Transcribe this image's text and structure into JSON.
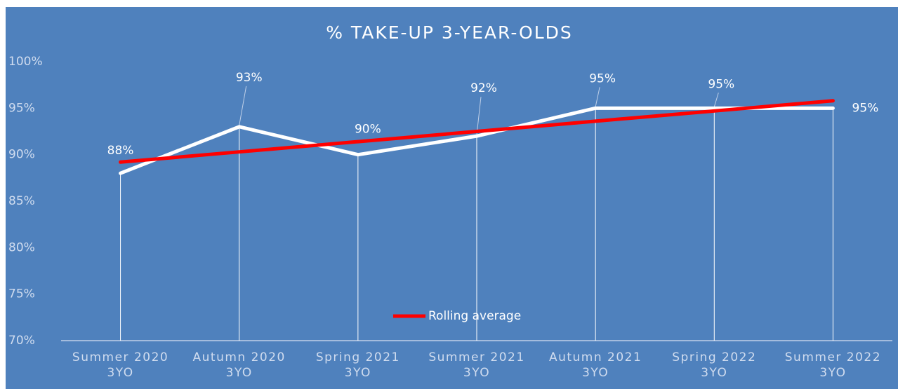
{
  "chart_data": {
    "type": "line",
    "title": "% TAKE-UP 3-YEAR-OLDS",
    "categories": [
      [
        "Summer 2020",
        "3YO"
      ],
      [
        "Autumn 2020",
        "3YO"
      ],
      [
        "Spring 2021",
        "3YO"
      ],
      [
        "Summer 2021",
        "3YO"
      ],
      [
        "Autumn 2021",
        "3YO"
      ],
      [
        "Spring 2022",
        "3YO"
      ],
      [
        "Summer 2022",
        "3YO"
      ]
    ],
    "series": [
      {
        "name": "Take-up",
        "color": "#ffffff",
        "values": [
          88,
          93,
          90,
          92,
          95,
          95,
          95
        ],
        "value_labels": [
          "88%",
          "93%",
          "90%",
          "92%",
          "95%",
          "95%",
          "95%"
        ]
      },
      {
        "name": "Rolling average",
        "color": "#ff0000",
        "values": [
          89.2,
          90.3,
          91.4,
          92.5,
          93.6,
          94.7,
          95.8
        ]
      }
    ],
    "ylim": [
      70,
      100
    ],
    "yticks": [
      {
        "value": 70,
        "label": "70%"
      },
      {
        "value": 75,
        "label": "75%"
      },
      {
        "value": 80,
        "label": "80%"
      },
      {
        "value": 85,
        "label": "85%"
      },
      {
        "value": 90,
        "label": "90%"
      },
      {
        "value": 95,
        "label": "95%"
      },
      {
        "value": 100,
        "label": "100%"
      }
    ],
    "grid": false
  }
}
